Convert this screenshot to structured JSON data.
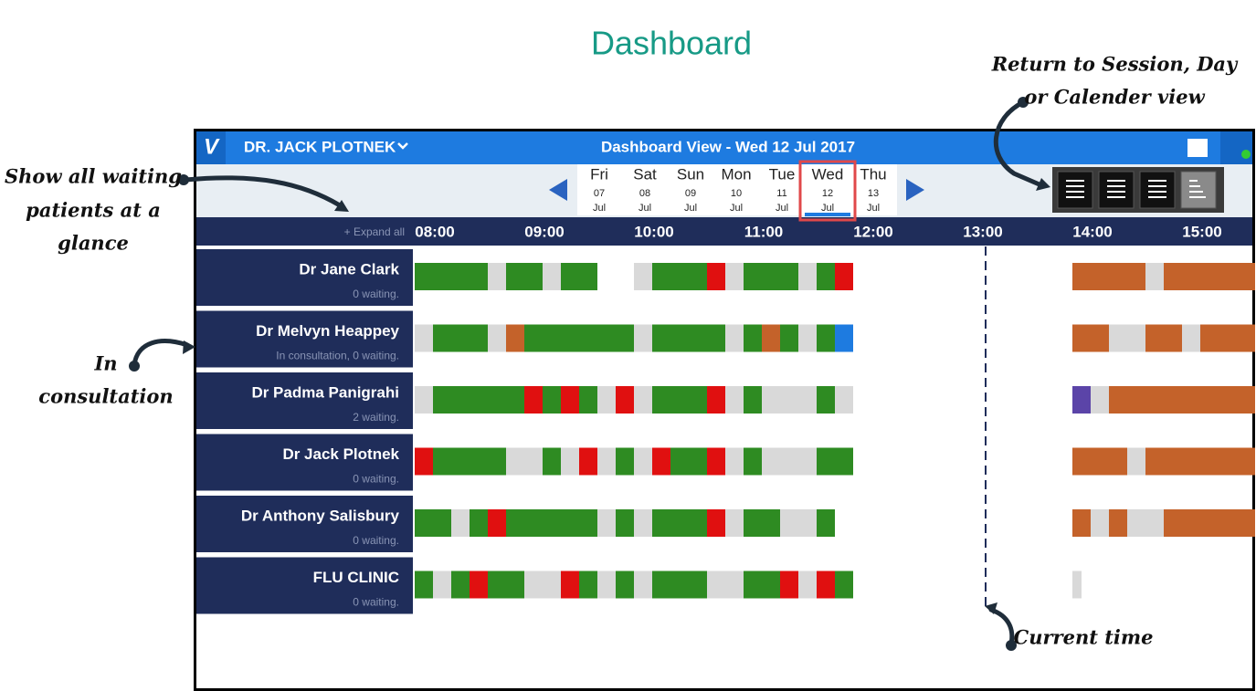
{
  "page_title": "Dashboard",
  "annotations": {
    "view_switch": [
      "Return to Session, Day",
      "or Calender view"
    ],
    "expand": [
      "Show all waiting",
      "patients at a",
      "glance"
    ],
    "consultation": [
      "In",
      "consultation"
    ],
    "current_time": "Current time"
  },
  "header": {
    "doctor": "DR. JACK PLOTNEK",
    "view_title": "Dashboard View - Wed 12 Jul 2017"
  },
  "days": [
    {
      "weekday": "Fri",
      "day": "07",
      "month": "Jul"
    },
    {
      "weekday": "Sat",
      "day": "08",
      "month": "Jul"
    },
    {
      "weekday": "Sun",
      "day": "09",
      "month": "Jul"
    },
    {
      "weekday": "Mon",
      "day": "10",
      "month": "Jul"
    },
    {
      "weekday": "Tue",
      "day": "11",
      "month": "Jul"
    },
    {
      "weekday": "Wed",
      "day": "12",
      "month": "Jul"
    },
    {
      "weekday": "Thu",
      "day": "13",
      "month": "Jul"
    }
  ],
  "expand_all": "+ Expand all",
  "times": [
    "08:00",
    "09:00",
    "10:00",
    "11:00",
    "12:00",
    "13:00",
    "14:00",
    "15:00"
  ],
  "clinicians": [
    {
      "name": "Dr Jane Clark",
      "status": "0 waiting."
    },
    {
      "name": "Dr Melvyn Heappey",
      "status": "In consultation, 0 waiting."
    },
    {
      "name": "Dr Padma Panigrahi",
      "status": "2 waiting."
    },
    {
      "name": "Dr Jack Plotnek",
      "status": "0 waiting."
    },
    {
      "name": "Dr Anthony Salisbury",
      "status": "0 waiting."
    },
    {
      "name": "FLU CLINIC",
      "status": "0 waiting."
    }
  ]
}
